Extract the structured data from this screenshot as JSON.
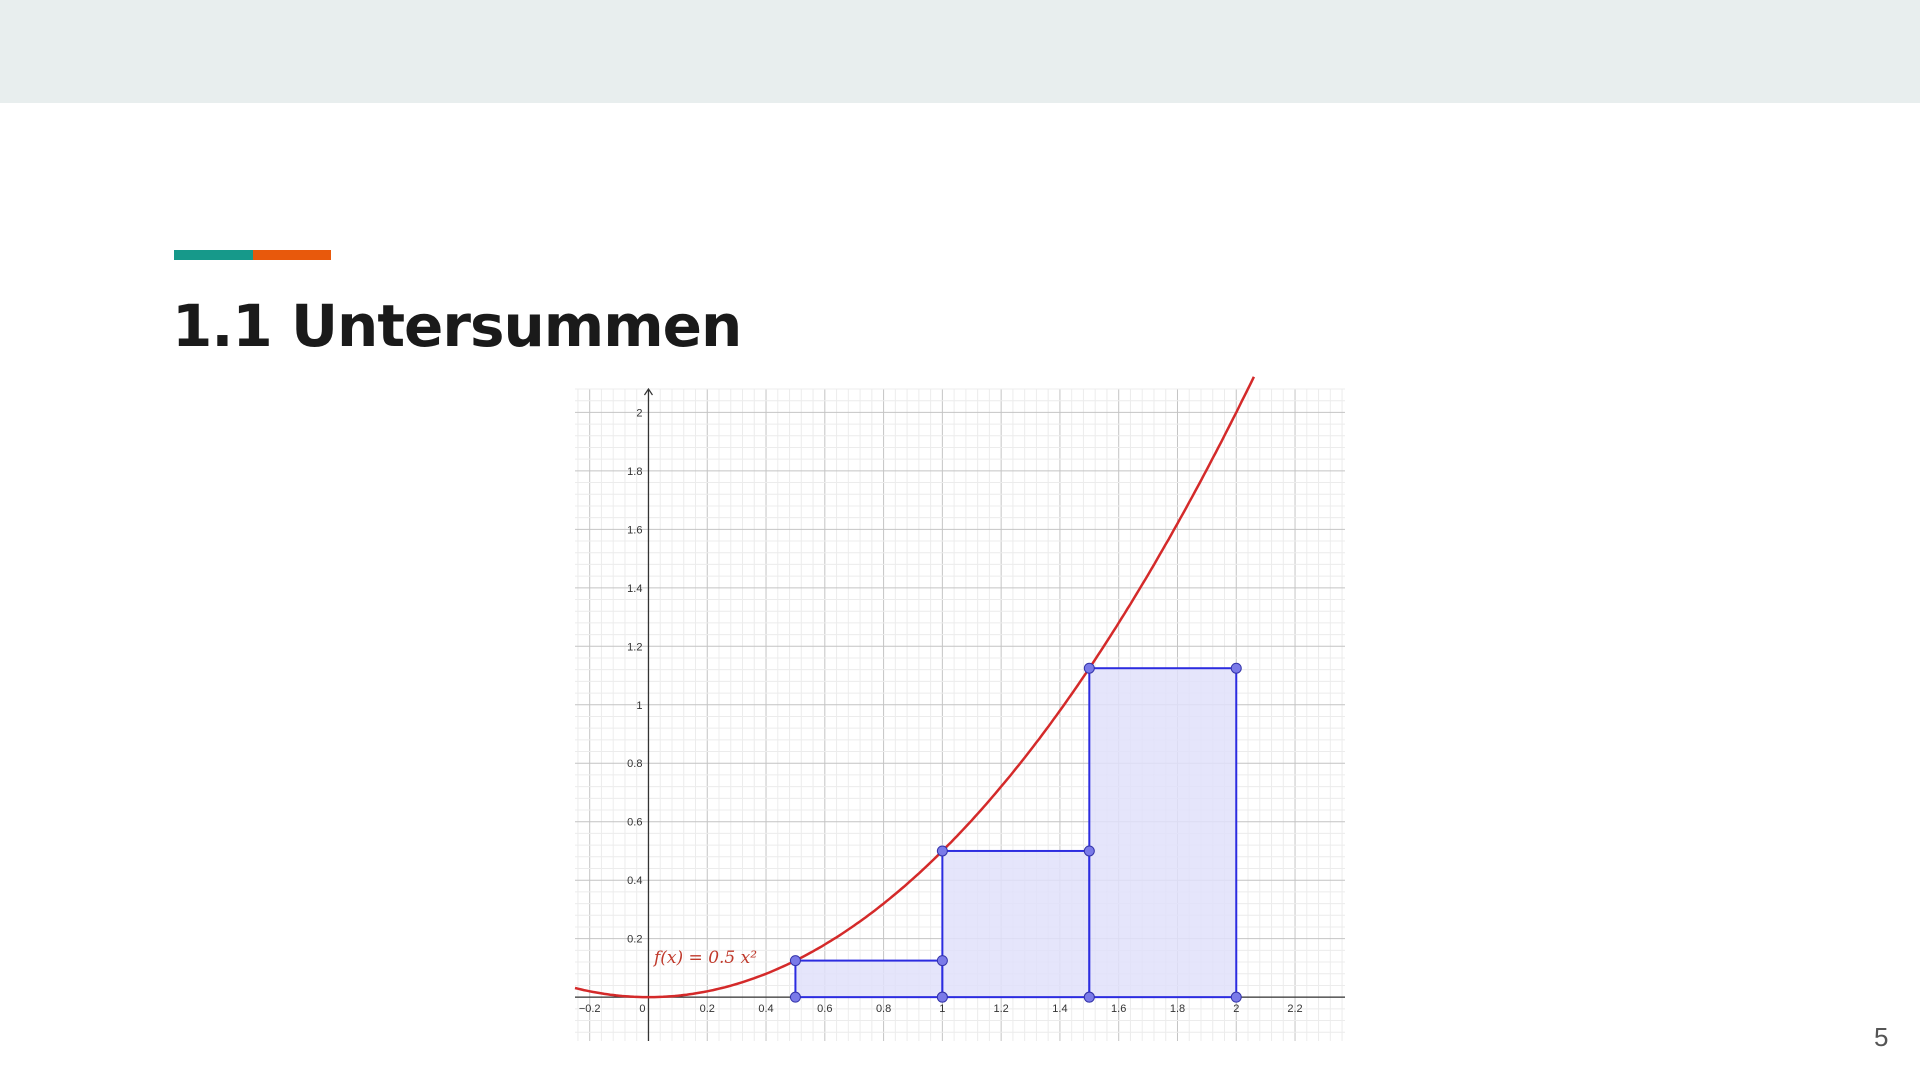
{
  "slide": {
    "title": "1.1 Untersummen",
    "page_number": "5",
    "accent_colors": [
      "#16998a",
      "#e8590c"
    ],
    "topbar_color": "#e8eeee"
  },
  "chart_data": {
    "type": "line",
    "function_label": "f(x) = 0.5 x²",
    "function": {
      "coefficient": 0.5,
      "exponent": 2
    },
    "xlim": [
      -0.25,
      2.37
    ],
    "ylim": [
      -0.15,
      2.08
    ],
    "grid": true,
    "x_ticks": [
      "−0.2",
      "0",
      "0.2",
      "0.4",
      "0.6",
      "0.8",
      "1",
      "1.2",
      "1.4",
      "1.6",
      "1.8",
      "2",
      "2.2"
    ],
    "x_tick_values": [
      -0.2,
      0,
      0.2,
      0.4,
      0.6,
      0.8,
      1,
      1.2,
      1.4,
      1.6,
      1.8,
      2,
      2.2
    ],
    "y_ticks": [
      "0.2",
      "0.4",
      "0.6",
      "0.8",
      "1",
      "1.2",
      "1.4",
      "1.6",
      "1.8",
      "2"
    ],
    "y_tick_values": [
      0.2,
      0.4,
      0.6,
      0.8,
      1,
      1.2,
      1.4,
      1.6,
      1.8,
      2
    ],
    "rectangles": [
      {
        "x0": 0.5,
        "x1": 1.0,
        "height": 0.125
      },
      {
        "x0": 1.0,
        "x1": 1.5,
        "height": 0.5
      },
      {
        "x0": 1.5,
        "x1": 2.0,
        "height": 1.125
      }
    ],
    "colors": {
      "curve": "#d42a2a",
      "rect_stroke": "#2c2ce0",
      "rect_fill": "#e0e0fa",
      "points": "#7a7ae8"
    }
  }
}
